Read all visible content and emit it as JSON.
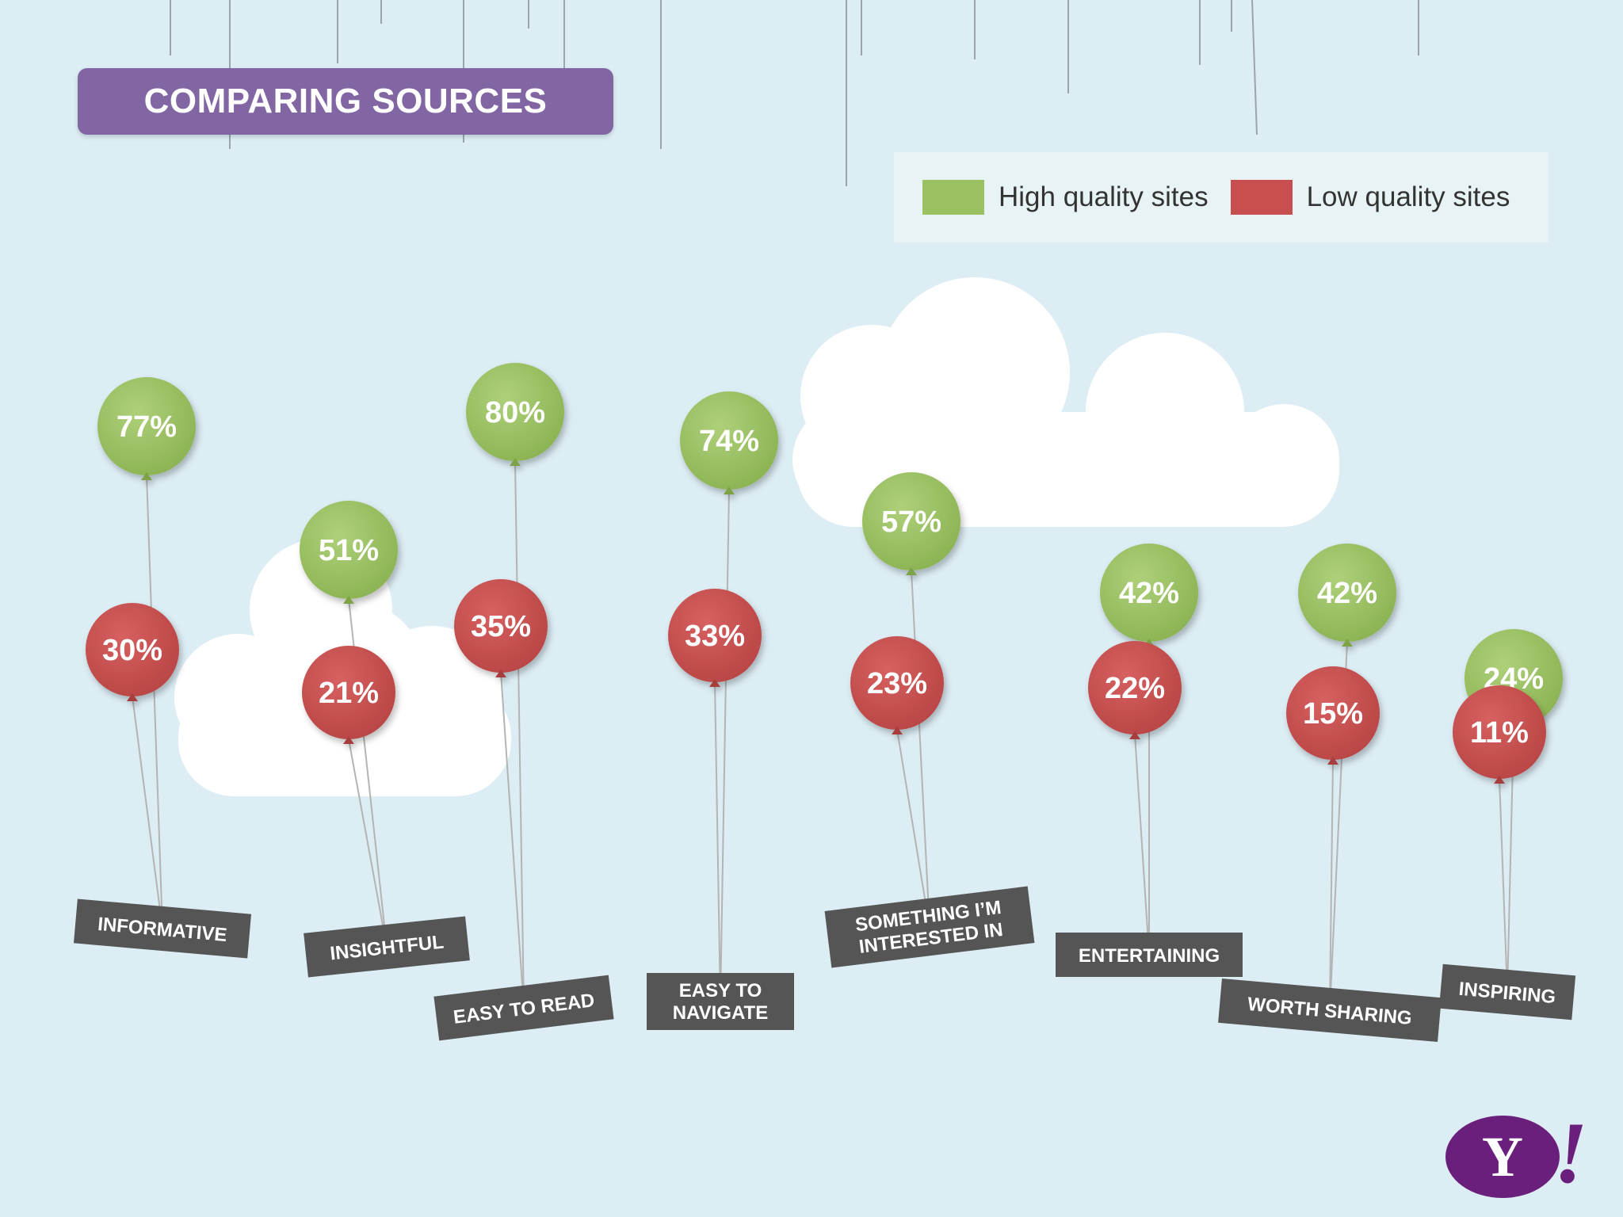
{
  "title": "COMPARING SOURCES",
  "legend": {
    "high_label": "High quality sites",
    "low_label": "Low quality sites",
    "high_color": "#9cc162",
    "low_color": "#c84f4f"
  },
  "colors": {
    "background": "#dcedf4",
    "title_banner": "#8266a4",
    "label_box": "#555555",
    "cloud": "#ffffff",
    "logo": "#6b1f7c"
  },
  "logo_text": {
    "letter": "Y",
    "exclaim": "!"
  },
  "chart_data": {
    "type": "bar",
    "title": "COMPARING SOURCES",
    "unit": "%",
    "categories": [
      [
        "INFORMATIVE"
      ],
      [
        "INSIGHTFUL"
      ],
      [
        "EASY TO READ"
      ],
      [
        "EASY TO",
        "NAVIGATE"
      ],
      [
        "SOMETHING I’M",
        "INTERESTED IN"
      ],
      [
        "ENTERTAINING"
      ],
      [
        "WORTH SHARING"
      ],
      [
        "INSPIRING"
      ]
    ],
    "series": [
      {
        "name": "High quality sites",
        "color": "#9cc162",
        "values": [
          77,
          51,
          80,
          74,
          57,
          42,
          42,
          24
        ]
      },
      {
        "name": "Low quality sites",
        "color": "#c84f4f",
        "values": [
          30,
          21,
          35,
          33,
          23,
          22,
          15,
          11
        ]
      }
    ]
  }
}
